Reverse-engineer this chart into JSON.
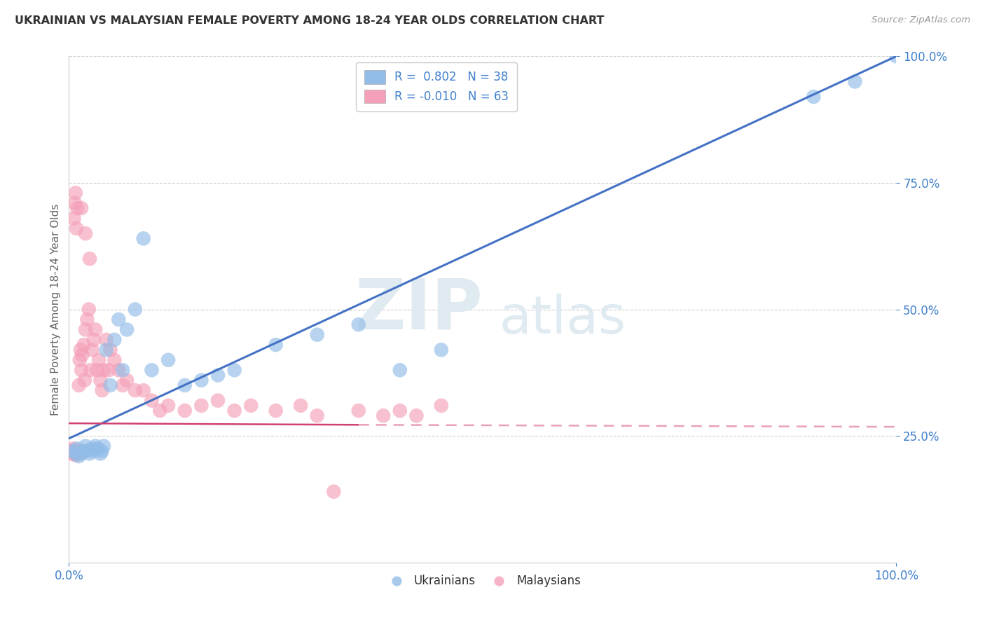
{
  "title": "UKRAINIAN VS MALAYSIAN FEMALE POVERTY AMONG 18-24 YEAR OLDS CORRELATION CHART",
  "source": "Source: ZipAtlas.com",
  "ylabel": "Female Poverty Among 18-24 Year Olds",
  "xlim": [
    0,
    1.0
  ],
  "ylim": [
    0,
    1.0
  ],
  "watermark_zip": "ZIP",
  "watermark_atlas": "atlas",
  "legend_r_ukrainian": "R =  0.802",
  "legend_n_ukrainian": "N = 38",
  "legend_r_malaysian": "R = -0.010",
  "legend_n_malaysian": "N = 63",
  "ukrainian_color": "#92bce8",
  "malaysian_color": "#f4a0b8",
  "ukrainian_line_color": "#4472c4",
  "malaysian_line_solid_color": "#d04070",
  "malaysian_line_dash_color": "#e8a0b8",
  "grid_color": "#d0d0d0",
  "background_color": "#ffffff",
  "title_color": "#333333",
  "source_color": "#999999",
  "tick_color": "#4080cc",
  "ylabel_color": "#666666",
  "ukr_x": [
    0.005,
    0.008,
    0.01,
    0.012,
    0.015,
    0.018,
    0.02,
    0.022,
    0.025,
    0.028,
    0.03,
    0.032,
    0.035,
    0.038,
    0.04,
    0.042,
    0.045,
    0.05,
    0.055,
    0.06,
    0.065,
    0.07,
    0.08,
    0.09,
    0.1,
    0.12,
    0.14,
    0.16,
    0.18,
    0.2,
    0.25,
    0.3,
    0.35,
    0.4,
    0.45,
    0.9,
    0.95,
    1.0
  ],
  "ukr_y": [
    0.22,
    0.215,
    0.225,
    0.21,
    0.215,
    0.22,
    0.23,
    0.22,
    0.215,
    0.225,
    0.22,
    0.23,
    0.225,
    0.215,
    0.22,
    0.23,
    0.42,
    0.35,
    0.44,
    0.48,
    0.38,
    0.46,
    0.5,
    0.64,
    0.38,
    0.4,
    0.35,
    0.36,
    0.37,
    0.38,
    0.43,
    0.45,
    0.47,
    0.38,
    0.42,
    0.92,
    0.95,
    1.0
  ],
  "mly_x": [
    0.002,
    0.003,
    0.004,
    0.005,
    0.006,
    0.007,
    0.008,
    0.009,
    0.01,
    0.011,
    0.012,
    0.013,
    0.014,
    0.015,
    0.016,
    0.018,
    0.019,
    0.02,
    0.022,
    0.024,
    0.026,
    0.028,
    0.03,
    0.032,
    0.034,
    0.036,
    0.038,
    0.04,
    0.042,
    0.045,
    0.048,
    0.05,
    0.055,
    0.06,
    0.065,
    0.07,
    0.08,
    0.09,
    0.1,
    0.11,
    0.12,
    0.14,
    0.16,
    0.18,
    0.2,
    0.22,
    0.25,
    0.28,
    0.3,
    0.32,
    0.35,
    0.38,
    0.4,
    0.42,
    0.45,
    0.006,
    0.007,
    0.008,
    0.009,
    0.01,
    0.015,
    0.02,
    0.025
  ],
  "mly_y": [
    0.22,
    0.215,
    0.22,
    0.225,
    0.215,
    0.218,
    0.212,
    0.22,
    0.218,
    0.215,
    0.35,
    0.4,
    0.42,
    0.38,
    0.41,
    0.43,
    0.36,
    0.46,
    0.48,
    0.5,
    0.38,
    0.42,
    0.44,
    0.46,
    0.38,
    0.4,
    0.36,
    0.34,
    0.38,
    0.44,
    0.38,
    0.42,
    0.4,
    0.38,
    0.35,
    0.36,
    0.34,
    0.34,
    0.32,
    0.3,
    0.31,
    0.3,
    0.31,
    0.32,
    0.3,
    0.31,
    0.3,
    0.31,
    0.29,
    0.14,
    0.3,
    0.29,
    0.3,
    0.29,
    0.31,
    0.68,
    0.71,
    0.73,
    0.66,
    0.7,
    0.7,
    0.65,
    0.6
  ],
  "ukr_line_x0": 0.0,
  "ukr_line_y0": 0.245,
  "ukr_line_x1": 1.0,
  "ukr_line_y1": 1.0,
  "mly_line_solid_x0": 0.0,
  "mly_line_solid_y0": 0.275,
  "mly_line_solid_x1": 0.35,
  "mly_line_solid_y1": 0.272,
  "mly_line_dash_x0": 0.35,
  "mly_line_dash_y0": 0.272,
  "mly_line_dash_x1": 1.0,
  "mly_line_dash_y1": 0.268
}
